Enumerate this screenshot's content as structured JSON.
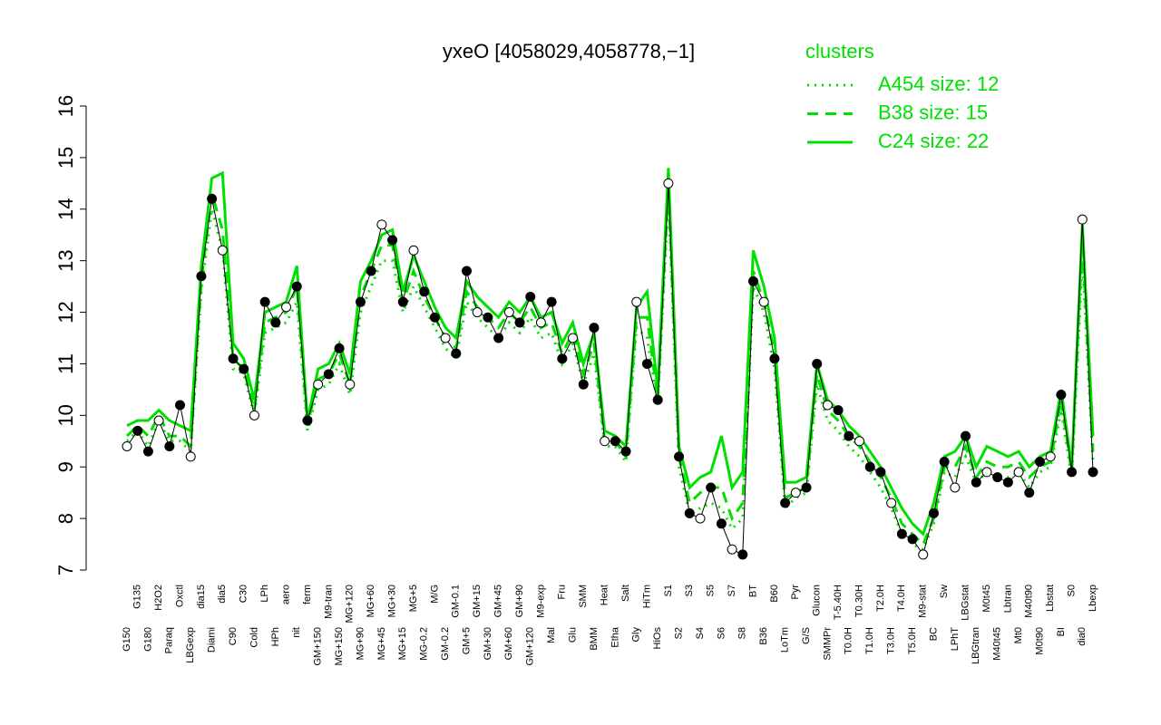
{
  "chart_data": {
    "type": "line",
    "title": "yxeO [4058029,4058778,−1]",
    "legend_title": "clusters",
    "legend_position": "top-right",
    "color": "#000000",
    "ylim": [
      7,
      16
    ],
    "yticks": [
      7,
      8,
      9,
      10,
      11,
      12,
      13,
      14,
      15,
      16
    ],
    "categories": [
      "G150",
      "G135",
      "G180",
      "H2O2",
      "Paraq",
      "Oxctl",
      "LBGexp",
      "dia15",
      "Diami",
      "dia5",
      "C90",
      "C30",
      "Cold",
      "LPh",
      "HPh",
      "aero",
      "nit",
      "ferm",
      "GM+150",
      "M9-tran",
      "MG+150",
      "MG+120",
      "MG+90",
      "MG+60",
      "MG+45",
      "MG+30",
      "MG+15",
      "MG+5",
      "MG-0.2",
      "M/G",
      "GM-0.2",
      "GM-0.1",
      "GM+5",
      "GM+15",
      "GM+30",
      "GM+45",
      "GM+60",
      "GM+90",
      "GM+120",
      "M9-exp",
      "Mal",
      "Fru",
      "Glu",
      "SMM",
      "BMM",
      "Heat",
      "Etha",
      "Salt",
      "Gly",
      "HiTm",
      "HiOs",
      "S1",
      "S2",
      "S3",
      "S4",
      "S5",
      "S6",
      "S7",
      "S8",
      "BT",
      "B36",
      "B60",
      "LoTm",
      "Pyr",
      "G/S",
      "Glucon",
      "SMMPr",
      "T-5.40H",
      "T0.0H",
      "T0.30H",
      "T1.0H",
      "T2.0H",
      "T3.0H",
      "T4.0H",
      "T5.0H",
      "M9-stat",
      "BC",
      "Sw",
      "LPhT",
      "LBGstat",
      "LBGtran",
      "M0t45",
      "M40t45",
      "Lbtran",
      "Mt0",
      "M40t90",
      "M0t90",
      "Lbstat",
      "BI",
      "S0",
      "dia0",
      "Lbexp"
    ],
    "values": [
      9.4,
      9.7,
      9.3,
      9.9,
      9.4,
      10.2,
      9.2,
      12.7,
      14.2,
      13.2,
      11.1,
      10.9,
      10.0,
      12.2,
      11.8,
      12.1,
      12.5,
      9.9,
      10.6,
      10.8,
      11.3,
      10.6,
      12.2,
      12.8,
      13.7,
      13.4,
      12.2,
      13.2,
      12.4,
      11.9,
      11.5,
      11.2,
      12.8,
      12.0,
      11.9,
      11.5,
      12.0,
      11.8,
      12.3,
      11.8,
      12.2,
      11.1,
      11.5,
      10.6,
      11.7,
      9.5,
      9.5,
      9.3,
      12.2,
      11.0,
      10.3,
      14.5,
      9.2,
      8.1,
      8.0,
      8.6,
      7.9,
      7.4,
      7.3,
      12.6,
      12.2,
      11.1,
      8.3,
      8.5,
      8.6,
      11.0,
      10.2,
      10.1,
      9.6,
      9.5,
      9.0,
      8.9,
      8.3,
      7.7,
      7.6,
      7.3,
      8.1,
      9.1,
      8.6,
      9.6,
      8.7,
      8.9,
      8.8,
      8.7,
      8.9,
      8.5,
      9.1,
      9.2,
      10.4,
      8.9,
      13.8,
      8.9
    ],
    "series": [
      {
        "name": "A454 size: 12",
        "color": "#00e000",
        "dash": "dotted",
        "values": [
          9.5,
          9.7,
          9.4,
          9.9,
          9.5,
          9.5,
          9.3,
          12.4,
          14.0,
          13.2,
          10.9,
          10.8,
          10.0,
          11.6,
          11.7,
          11.8,
          12.2,
          9.7,
          10.5,
          10.6,
          11.0,
          10.4,
          12.0,
          12.5,
          13.0,
          13.0,
          12.0,
          12.5,
          12.1,
          11.7,
          11.3,
          11.1,
          12.2,
          11.9,
          11.7,
          11.5,
          11.8,
          11.6,
          11.9,
          11.5,
          11.6,
          11.0,
          11.4,
          10.6,
          11.2,
          9.4,
          9.4,
          9.1,
          11.7,
          11.5,
          10.2,
          14.2,
          9.0,
          8.1,
          8.2,
          8.3,
          8.2,
          7.8,
          8.0,
          12.5,
          12.0,
          10.9,
          8.2,
          8.4,
          8.5,
          10.6,
          9.9,
          9.7,
          9.4,
          9.2,
          8.9,
          8.6,
          8.2,
          7.7,
          7.5,
          7.4,
          7.9,
          8.9,
          8.8,
          9.2,
          8.7,
          8.9,
          8.8,
          8.8,
          8.9,
          8.6,
          8.9,
          9.0,
          10.1,
          8.8,
          13.0,
          9.1
        ]
      },
      {
        "name": "B38 size: 15",
        "color": "#00e000",
        "dash": "dashed",
        "values": [
          9.6,
          9.8,
          9.6,
          10.0,
          9.6,
          9.6,
          9.4,
          12.6,
          14.3,
          13.6,
          11.1,
          10.9,
          10.1,
          11.8,
          11.9,
          12.0,
          12.5,
          9.8,
          10.7,
          10.8,
          11.2,
          10.6,
          12.3,
          12.8,
          13.3,
          13.3,
          12.2,
          12.8,
          12.3,
          11.9,
          11.5,
          11.3,
          12.4,
          12.1,
          11.9,
          11.7,
          12.0,
          11.8,
          12.1,
          11.7,
          11.8,
          11.2,
          11.6,
          10.8,
          11.4,
          9.5,
          9.5,
          9.2,
          11.9,
          11.9,
          10.3,
          14.5,
          9.2,
          8.3,
          8.5,
          8.6,
          8.6,
          8.0,
          8.3,
          12.8,
          12.2,
          11.2,
          8.4,
          8.5,
          8.6,
          10.8,
          10.1,
          9.9,
          9.6,
          9.4,
          9.1,
          8.8,
          8.4,
          7.9,
          7.7,
          7.5,
          8.0,
          9.0,
          9.0,
          9.4,
          8.8,
          9.1,
          9.0,
          9.0,
          9.1,
          8.8,
          9.0,
          9.1,
          10.3,
          8.9,
          13.4,
          9.3
        ]
      },
      {
        "name": "C24 size: 22",
        "color": "#00e000",
        "dash": "solid",
        "values": [
          9.8,
          9.9,
          9.9,
          10.1,
          9.9,
          9.8,
          9.7,
          12.9,
          14.6,
          14.7,
          11.4,
          11.1,
          10.3,
          12.0,
          12.1,
          12.2,
          12.9,
          9.9,
          10.9,
          11.0,
          11.4,
          10.8,
          12.6,
          13.0,
          13.5,
          13.6,
          12.4,
          13.1,
          12.6,
          12.1,
          11.7,
          11.5,
          12.6,
          12.3,
          12.1,
          11.9,
          12.2,
          12.0,
          12.3,
          11.9,
          12.0,
          11.4,
          11.8,
          11.0,
          11.6,
          9.7,
          9.6,
          9.4,
          12.1,
          12.4,
          10.5,
          14.8,
          9.4,
          8.6,
          8.8,
          8.9,
          9.6,
          8.6,
          8.9,
          13.2,
          12.5,
          11.5,
          8.7,
          8.7,
          8.8,
          11.0,
          10.3,
          10.1,
          9.8,
          9.6,
          9.3,
          9.0,
          8.6,
          8.2,
          7.9,
          7.7,
          8.3,
          9.2,
          9.3,
          9.6,
          9.0,
          9.4,
          9.3,
          9.2,
          9.3,
          9.0,
          9.2,
          9.3,
          10.5,
          9.0,
          13.7,
          9.6
        ]
      }
    ]
  }
}
